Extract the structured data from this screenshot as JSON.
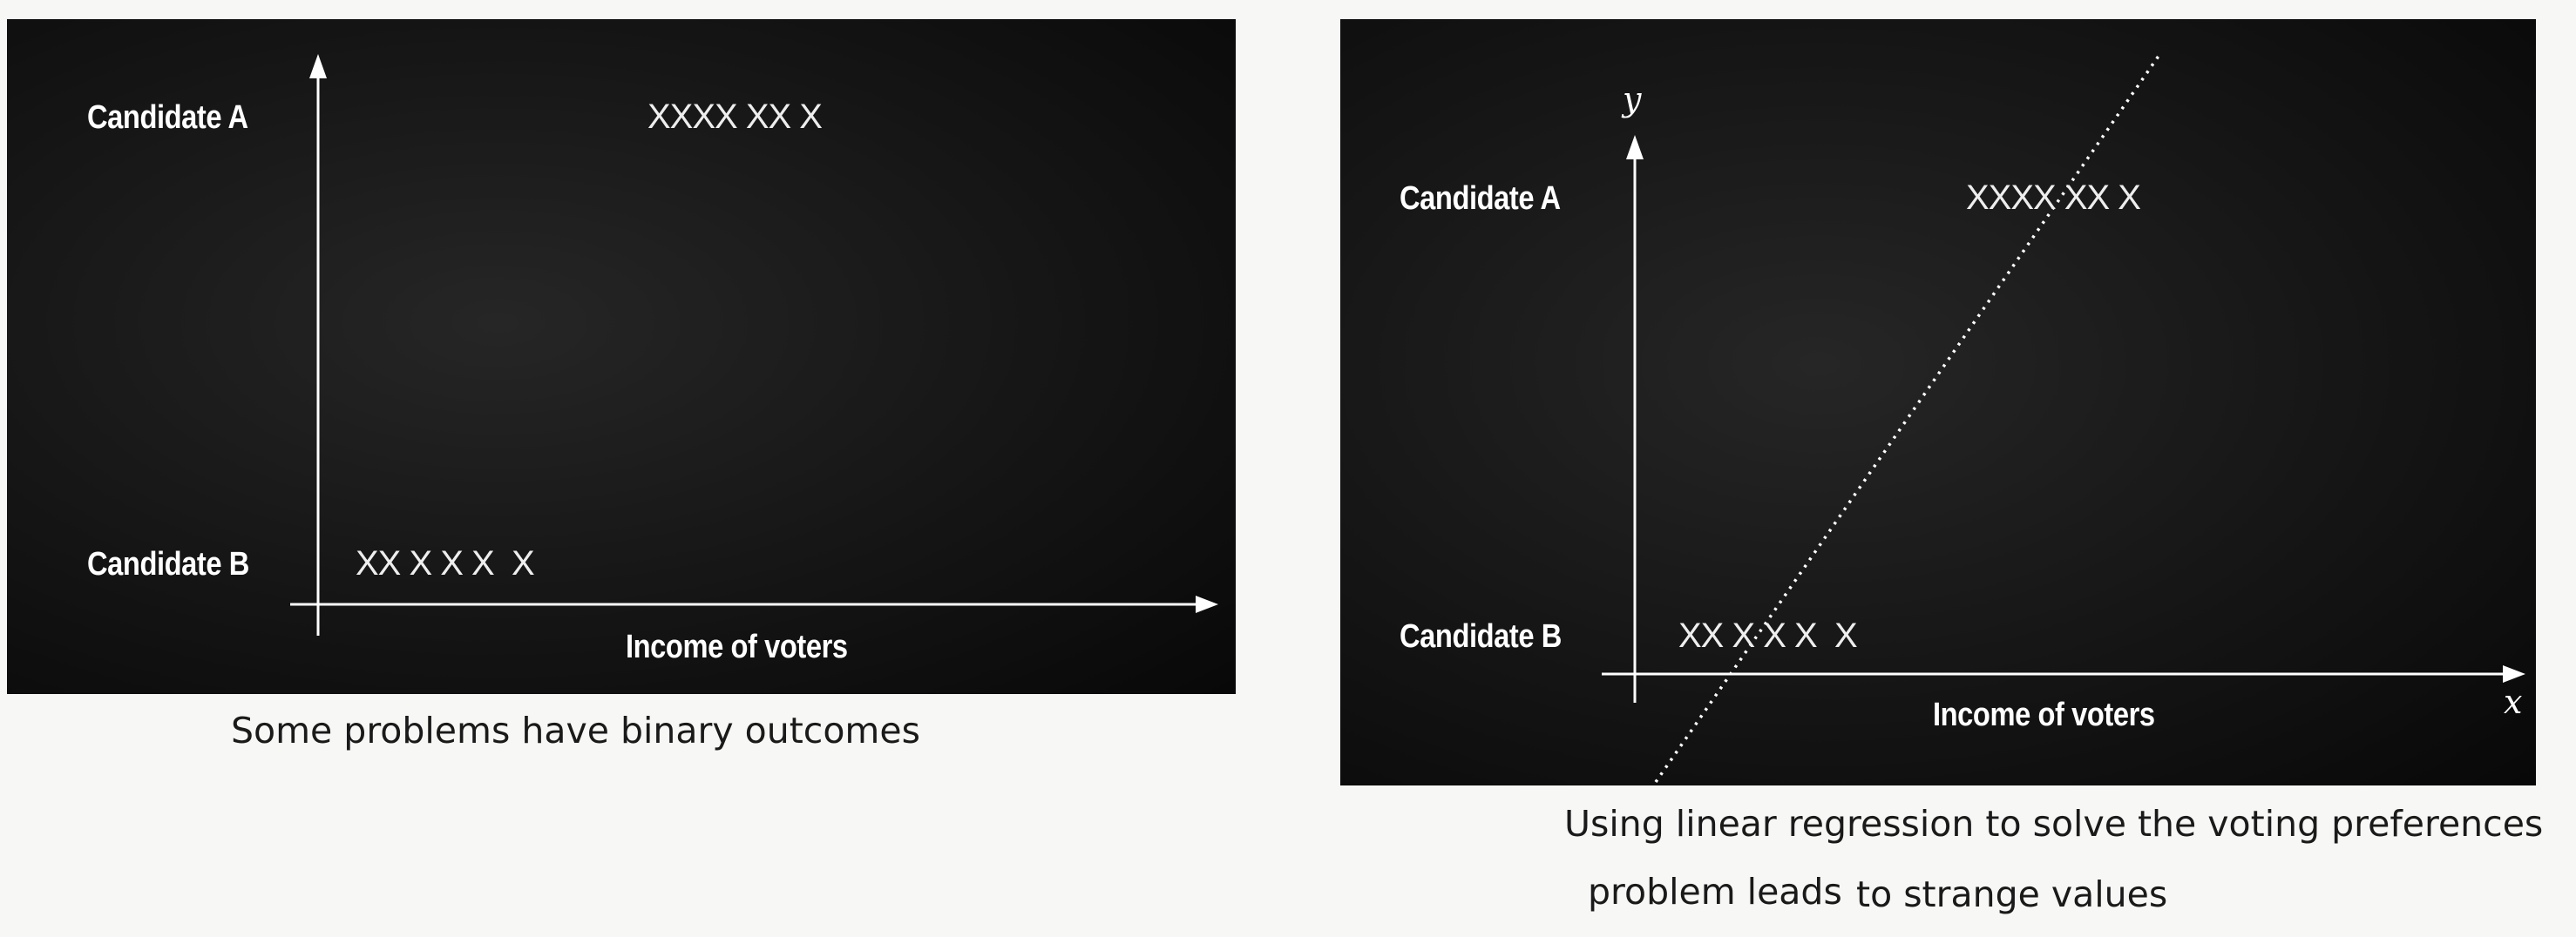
{
  "left_figure": {
    "label_a": "Candidate A",
    "label_b": "Candidate B",
    "marks_a": "XXXX XX X",
    "marks_b": "XX X X X  X",
    "x_axis_label": "Income of voters",
    "caption": "Some problems have binary outcomes"
  },
  "right_figure": {
    "y_var": "y",
    "x_var": "x",
    "label_a": "Candidate A",
    "label_b": "Candidate B",
    "marks_a": "XXXX XX X",
    "marks_b": "XX X X X  X",
    "x_axis_label": "Income of voters",
    "caption_line1": "Using linear regression to solve the voting preferences",
    "caption_line2_a": "problem leads",
    "caption_line2_b": "to strange values"
  }
}
